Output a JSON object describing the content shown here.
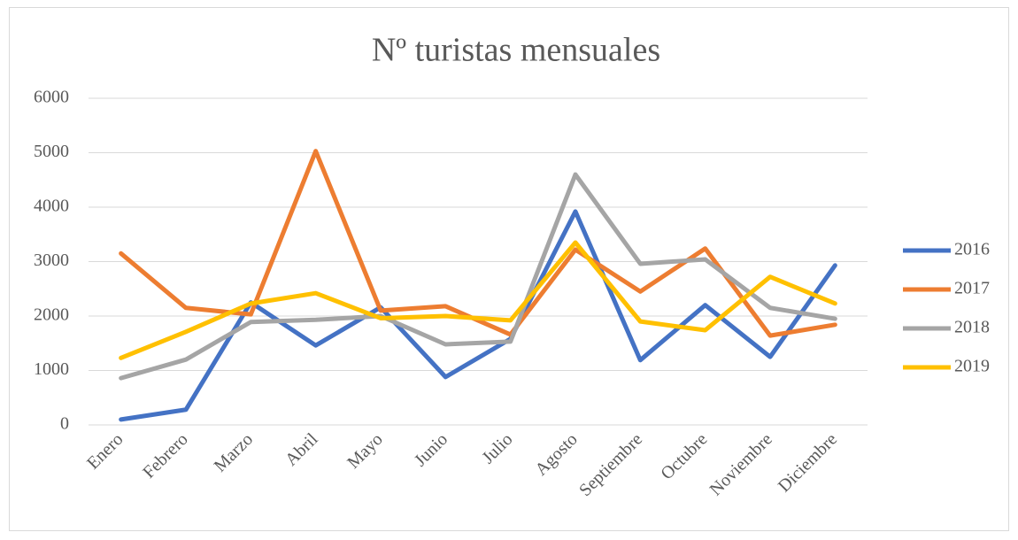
{
  "chart_data": {
    "type": "line",
    "title": "Nº turistas mensuales",
    "categories": [
      "Enero",
      "Febrero",
      "Marzo",
      "Abril",
      "Mayo",
      "Junio",
      "Julio",
      "Agosto",
      "Septiembre",
      "Octubre",
      "Noviembre",
      "Diciembre"
    ],
    "series": [
      {
        "name": "2016",
        "color": "#4472c4",
        "values": [
          100,
          280,
          2250,
          1460,
          2160,
          880,
          1580,
          3920,
          1190,
          2200,
          1250,
          2930
        ]
      },
      {
        "name": "2017",
        "color": "#ed7d31",
        "values": [
          3150,
          2150,
          2030,
          5030,
          2100,
          2180,
          1660,
          3220,
          2450,
          3240,
          1640,
          1840
        ]
      },
      {
        "name": "2018",
        "color": "#a5a5a5",
        "values": [
          860,
          1200,
          1890,
          1930,
          2000,
          1480,
          1530,
          4600,
          2960,
          3040,
          2150,
          1950
        ]
      },
      {
        "name": "2019",
        "color": "#ffc000",
        "values": [
          1230,
          1710,
          2230,
          2420,
          1960,
          2000,
          1920,
          3350,
          1900,
          1740,
          2720,
          2230
        ]
      }
    ],
    "ylim": [
      0,
      6000
    ],
    "yticks": [
      0,
      1000,
      2000,
      3000,
      4000,
      5000,
      6000
    ],
    "grid": true,
    "legend": "right"
  }
}
